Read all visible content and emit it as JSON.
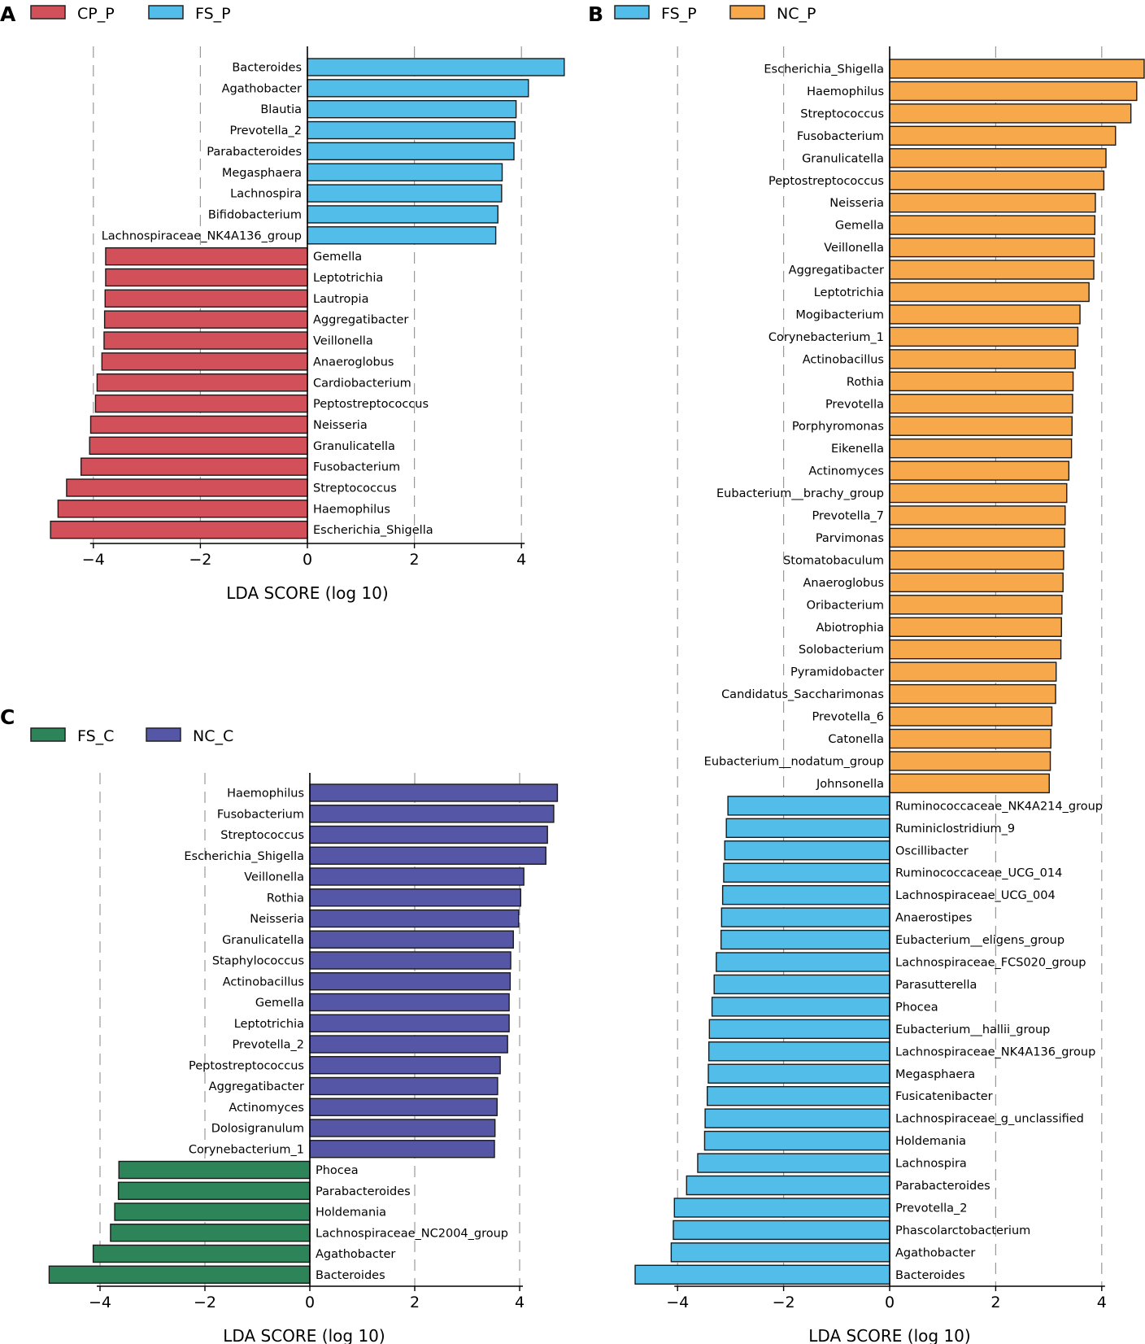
{
  "chart_data": [
    {
      "panel": "A",
      "type": "bar",
      "orientation": "horizontal",
      "xlabel": "LDA SCORE (log 10)",
      "xticks": [
        -4,
        -2,
        0,
        2,
        4
      ],
      "xlim": [
        -4.8,
        4.8
      ],
      "legend": [
        {
          "label": "CP_P",
          "color": "#d2505a"
        },
        {
          "label": "FS_P",
          "color": "#52bde9"
        }
      ],
      "categories": [
        "Bacteroides",
        "Agathobacter",
        "Blautia",
        "Prevotella_2",
        "Parabacteroides",
        "Megasphaera",
        "Lachnospira",
        "Bifidobacterium",
        "Lachnospiraceae_NK4A136_group",
        "Gemella",
        "Leptotrichia",
        "Lautropia",
        "Aggregatibacter",
        "Veillonella",
        "Anaeroglobus",
        "Cardiobacterium",
        "Peptostreptococcus",
        "Neisseria",
        "Granulicatella",
        "Fusobacterium",
        "Streptococcus",
        "Haemophilus",
        "Escherichia_Shigella"
      ],
      "values": [
        4.8,
        4.13,
        3.9,
        3.88,
        3.86,
        3.64,
        3.63,
        3.56,
        3.52,
        -3.77,
        -3.77,
        -3.78,
        -3.79,
        -3.8,
        -3.84,
        -3.93,
        -3.96,
        -4.05,
        -4.07,
        -4.23,
        -4.5,
        -4.66,
        -4.8
      ],
      "groups": [
        "FS_P",
        "FS_P",
        "FS_P",
        "FS_P",
        "FS_P",
        "FS_P",
        "FS_P",
        "FS_P",
        "FS_P",
        "CP_P",
        "CP_P",
        "CP_P",
        "CP_P",
        "CP_P",
        "CP_P",
        "CP_P",
        "CP_P",
        "CP_P",
        "CP_P",
        "CP_P",
        "CP_P",
        "CP_P",
        "CP_P"
      ]
    },
    {
      "panel": "B",
      "type": "bar",
      "orientation": "horizontal",
      "xlabel": "LDA SCORE (log 10)",
      "xticks": [
        -4,
        -2,
        0,
        2,
        4
      ],
      "xlim": [
        -4.8,
        4.8
      ],
      "legend": [
        {
          "label": "FS_P",
          "color": "#52bde9"
        },
        {
          "label": "NC_P",
          "color": "#f6a84a"
        }
      ],
      "categories": [
        "Escherichia_Shigella",
        "Haemophilus",
        "Streptococcus",
        "Fusobacterium",
        "Granulicatella",
        "Peptostreptococcus",
        "Neisseria",
        "Gemella",
        "Veillonella",
        "Aggregatibacter",
        "Leptotrichia",
        "Mogibacterium",
        "Corynebacterium_1",
        "Actinobacillus",
        "Rothia",
        "Prevotella",
        "Porphyromonas",
        "Eikenella",
        "Actinomyces",
        "Eubacterium__brachy_group",
        "Prevotella_7",
        "Parvimonas",
        "Stomatobaculum",
        "Anaeroglobus",
        "Oribacterium",
        "Abiotrophia",
        "Solobacterium",
        "Pyramidobacter",
        "Candidatus_Saccharimonas",
        "Prevotella_6",
        "Catonella",
        "Eubacterium__nodatum_group",
        "Johnsonella",
        "Ruminococcaceae_NK4A214_group",
        "Ruminiclostridium_9",
        "Oscillibacter",
        "Ruminococcaceae_UCG_014",
        "Lachnospiraceae_UCG_004",
        "Anaerostipes",
        "Eubacterium__eligens_group",
        "Lachnospiraceae_FCS020_group",
        "Parasutterella",
        "Phocea",
        "Eubacterium__hallii_group",
        "Lachnospiraceae_NK4A136_group",
        "Megasphaera",
        "Fusicatenibacter",
        "Lachnospiraceae_g_unclassified",
        "Holdemania",
        "Lachnospira",
        "Parabacteroides",
        "Prevotella_2",
        "Phascolarctobacterium",
        "Agathobacter",
        "Bacteroides"
      ],
      "values": [
        4.8,
        4.66,
        4.55,
        4.26,
        4.08,
        4.04,
        3.88,
        3.87,
        3.86,
        3.85,
        3.76,
        3.59,
        3.55,
        3.5,
        3.46,
        3.45,
        3.44,
        3.43,
        3.38,
        3.34,
        3.31,
        3.3,
        3.28,
        3.27,
        3.25,
        3.24,
        3.23,
        3.14,
        3.13,
        3.06,
        3.04,
        3.03,
        3.01,
        -3.05,
        -3.08,
        -3.11,
        -3.13,
        -3.15,
        -3.17,
        -3.18,
        -3.27,
        -3.31,
        -3.35,
        -3.4,
        -3.41,
        -3.42,
        -3.44,
        -3.48,
        -3.49,
        -3.62,
        -3.83,
        -4.06,
        -4.08,
        -4.12,
        -4.8
      ],
      "groups": [
        "NC_P",
        "NC_P",
        "NC_P",
        "NC_P",
        "NC_P",
        "NC_P",
        "NC_P",
        "NC_P",
        "NC_P",
        "NC_P",
        "NC_P",
        "NC_P",
        "NC_P",
        "NC_P",
        "NC_P",
        "NC_P",
        "NC_P",
        "NC_P",
        "NC_P",
        "NC_P",
        "NC_P",
        "NC_P",
        "NC_P",
        "NC_P",
        "NC_P",
        "NC_P",
        "NC_P",
        "NC_P",
        "NC_P",
        "NC_P",
        "NC_P",
        "NC_P",
        "NC_P",
        "FS_P",
        "FS_P",
        "FS_P",
        "FS_P",
        "FS_P",
        "FS_P",
        "FS_P",
        "FS_P",
        "FS_P",
        "FS_P",
        "FS_P",
        "FS_P",
        "FS_P",
        "FS_P",
        "FS_P",
        "FS_P",
        "FS_P",
        "FS_P",
        "FS_P",
        "FS_P",
        "FS_P",
        "FS_P"
      ]
    },
    {
      "panel": "C",
      "type": "bar",
      "orientation": "horizontal",
      "xlabel": "LDA SCORE (log 10)",
      "xticks": [
        -4,
        -2,
        0,
        2,
        4
      ],
      "xlim": [
        -5.0,
        5.0
      ],
      "legend": [
        {
          "label": "FS_C",
          "color": "#2c8458"
        },
        {
          "label": "NC_C",
          "color": "#5556a6"
        }
      ],
      "categories": [
        "Haemophilus",
        "Fusobacterium",
        "Streptococcus",
        "Escherichia_Shigella",
        "Veillonella",
        "Rothia",
        "Neisseria",
        "Granulicatella",
        "Staphylococcus",
        "Actinobacillus",
        "Gemella",
        "Leptotrichia",
        "Prevotella_2",
        "Peptostreptococcus",
        "Aggregatibacter",
        "Actinomyces",
        "Dolosigranulum",
        "Corynebacterium_1",
        "Phocea",
        "Parabacteroides",
        "Holdemania",
        "Lachnospiraceae_NC2004_group",
        "Agathobacter",
        "Bacteroides"
      ],
      "values": [
        4.72,
        4.65,
        4.53,
        4.5,
        4.08,
        4.02,
        3.98,
        3.88,
        3.83,
        3.82,
        3.8,
        3.8,
        3.77,
        3.63,
        3.58,
        3.57,
        3.53,
        3.52,
        -3.64,
        -3.65,
        -3.72,
        -3.8,
        -4.13,
        -4.97
      ],
      "groups": [
        "NC_C",
        "NC_C",
        "NC_C",
        "NC_C",
        "NC_C",
        "NC_C",
        "NC_C",
        "NC_C",
        "NC_C",
        "NC_C",
        "NC_C",
        "NC_C",
        "NC_C",
        "NC_C",
        "NC_C",
        "NC_C",
        "NC_C",
        "NC_C",
        "FS_C",
        "FS_C",
        "FS_C",
        "FS_C",
        "FS_C",
        "FS_C"
      ]
    }
  ]
}
